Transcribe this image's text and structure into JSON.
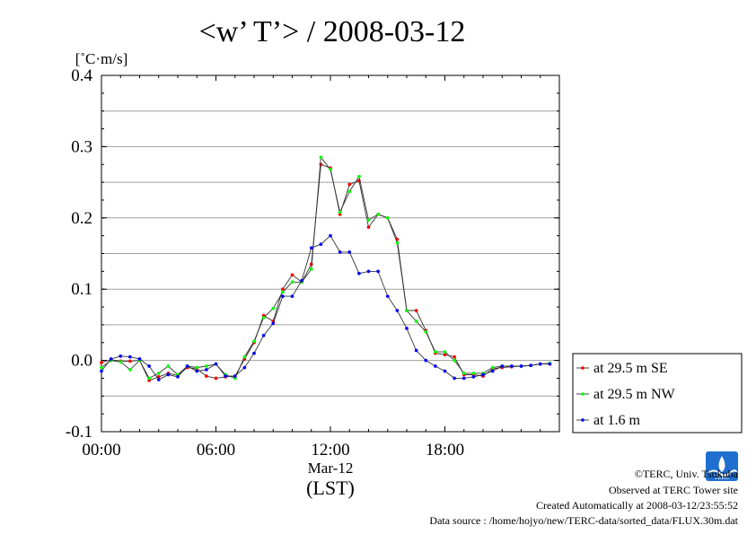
{
  "chart_data": {
    "type": "line",
    "title": "<w’ T’> / 2008-03-12",
    "ylabel": "[˚C·m/s]",
    "xlabel_date": "Mar-12",
    "xlabel_zone": "(LST)",
    "ylim": [
      -0.1,
      0.4
    ],
    "yticks": [
      -0.1,
      0.0,
      0.1,
      0.2,
      0.3,
      0.4
    ],
    "ytick_labels": [
      "-0.1",
      "0.0",
      "0.1",
      "0.2",
      "0.3",
      "0.4"
    ],
    "xlim_hours": [
      0,
      24
    ],
    "xticks_hours": [
      0,
      6,
      12,
      18
    ],
    "xtick_labels": [
      "00:00",
      "06:00",
      "12:00",
      "18:00"
    ],
    "grid": true,
    "legend_position": "right",
    "x_hours": [
      0,
      0.5,
      1,
      1.5,
      2,
      2.5,
      3,
      3.5,
      4,
      4.5,
      5,
      5.5,
      6,
      6.5,
      7,
      7.5,
      8,
      8.5,
      9,
      9.5,
      10,
      10.5,
      11,
      11.5,
      12,
      12.5,
      13,
      13.5,
      14,
      14.5,
      15,
      15.5,
      16,
      16.5,
      17,
      17.5,
      18,
      18.5,
      19,
      19.5,
      20,
      20.5,
      21,
      21.5,
      22,
      22.5,
      23,
      23.5
    ],
    "series": [
      {
        "name": "at 29.5 m SE",
        "color": "#ff0000",
        "values": [
          -0.003,
          0.001,
          -0.001,
          -0.001,
          0.0,
          -0.028,
          -0.023,
          -0.018,
          -0.021,
          -0.01,
          -0.012,
          -0.022,
          -0.025,
          -0.023,
          -0.022,
          0.002,
          0.025,
          0.063,
          0.055,
          0.1,
          0.12,
          0.11,
          0.135,
          0.275,
          0.27,
          0.205,
          0.247,
          0.252,
          0.187,
          0.205,
          0.2,
          0.17,
          0.07,
          0.07,
          0.042,
          0.01,
          0.008,
          0.005,
          -0.02,
          -0.02,
          -0.022,
          -0.012,
          -0.01,
          -0.009,
          -0.008,
          -0.007,
          -0.005,
          -0.005
        ]
      },
      {
        "name": "at 29.5 m NW",
        "color": "#00ff00",
        "values": [
          -0.01,
          0.0,
          -0.002,
          -0.013,
          0.0,
          -0.025,
          -0.018,
          -0.008,
          -0.02,
          -0.008,
          -0.01,
          -0.008,
          -0.005,
          -0.02,
          -0.025,
          0.005,
          0.027,
          0.06,
          0.073,
          0.096,
          0.11,
          0.11,
          0.128,
          0.285,
          0.268,
          0.208,
          0.237,
          0.258,
          0.197,
          0.205,
          0.2,
          0.165,
          0.07,
          0.055,
          0.04,
          0.012,
          0.012,
          0.0,
          -0.018,
          -0.018,
          -0.018,
          -0.01,
          -0.008,
          -0.008,
          -0.008,
          -0.007,
          -0.005,
          -0.004
        ]
      },
      {
        "name": "at 1.6 m",
        "color": "#0000ff",
        "values": [
          -0.015,
          0.002,
          0.006,
          0.005,
          0.002,
          -0.008,
          -0.027,
          -0.02,
          -0.023,
          -0.008,
          -0.015,
          -0.013,
          -0.005,
          -0.022,
          -0.022,
          -0.01,
          0.01,
          0.035,
          0.052,
          0.09,
          0.09,
          0.112,
          0.158,
          0.163,
          0.175,
          0.152,
          0.152,
          0.122,
          0.125,
          0.125,
          0.09,
          0.07,
          0.045,
          0.014,
          0.0,
          -0.008,
          -0.015,
          -0.025,
          -0.025,
          -0.023,
          -0.02,
          -0.015,
          -0.008,
          -0.008,
          -0.008,
          -0.007,
          -0.005,
          -0.005
        ]
      }
    ]
  },
  "footer": {
    "copyright": "©TERC, Univ. Tsukuba",
    "observed": "Observed at TERC Tower site",
    "created": "Created Automatically at 2008-03-12/23:55:52",
    "source": "Data source : /home/hojyo/new/TERC-data/sorted_data/FLUX.30m.dat",
    "logo_text": "TERC"
  }
}
